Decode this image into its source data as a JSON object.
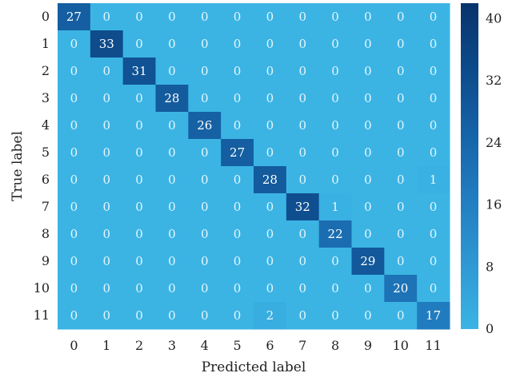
{
  "chart_data": {
    "type": "heatmap",
    "title": "",
    "xlabel": "Predicted label",
    "ylabel": "True label",
    "x_categories": [
      "0",
      "1",
      "2",
      "3",
      "4",
      "5",
      "6",
      "7",
      "8",
      "9",
      "10",
      "11"
    ],
    "y_categories": [
      "0",
      "1",
      "2",
      "3",
      "4",
      "5",
      "6",
      "7",
      "8",
      "9",
      "10",
      "11"
    ],
    "values": [
      [
        27,
        0,
        0,
        0,
        0,
        0,
        0,
        0,
        0,
        0,
        0,
        0
      ],
      [
        0,
        33,
        0,
        0,
        0,
        0,
        0,
        0,
        0,
        0,
        0,
        0
      ],
      [
        0,
        0,
        31,
        0,
        0,
        0,
        0,
        0,
        0,
        0,
        0,
        0
      ],
      [
        0,
        0,
        0,
        28,
        0,
        0,
        0,
        0,
        0,
        0,
        0,
        0
      ],
      [
        0,
        0,
        0,
        0,
        26,
        0,
        0,
        0,
        0,
        0,
        0,
        0
      ],
      [
        0,
        0,
        0,
        0,
        0,
        27,
        0,
        0,
        0,
        0,
        0,
        0
      ],
      [
        0,
        0,
        0,
        0,
        0,
        0,
        28,
        0,
        0,
        0,
        0,
        1
      ],
      [
        0,
        0,
        0,
        0,
        0,
        0,
        0,
        32,
        1,
        0,
        0,
        0
      ],
      [
        0,
        0,
        0,
        0,
        0,
        0,
        0,
        0,
        22,
        0,
        0,
        0
      ],
      [
        0,
        0,
        0,
        0,
        0,
        0,
        0,
        0,
        0,
        29,
        0,
        0
      ],
      [
        0,
        0,
        0,
        0,
        0,
        0,
        0,
        0,
        0,
        0,
        20,
        0
      ],
      [
        0,
        0,
        0,
        0,
        0,
        0,
        2,
        0,
        0,
        0,
        0,
        17
      ]
    ],
    "colorbar": {
      "min": 0,
      "max": 42,
      "ticks": [
        0,
        8,
        16,
        24,
        32,
        40
      ],
      "colormap": [
        "#3bb4e4",
        "#2e98d2",
        "#217dc0",
        "#1663a7",
        "#0d4a8a",
        "#08336b"
      ]
    }
  }
}
